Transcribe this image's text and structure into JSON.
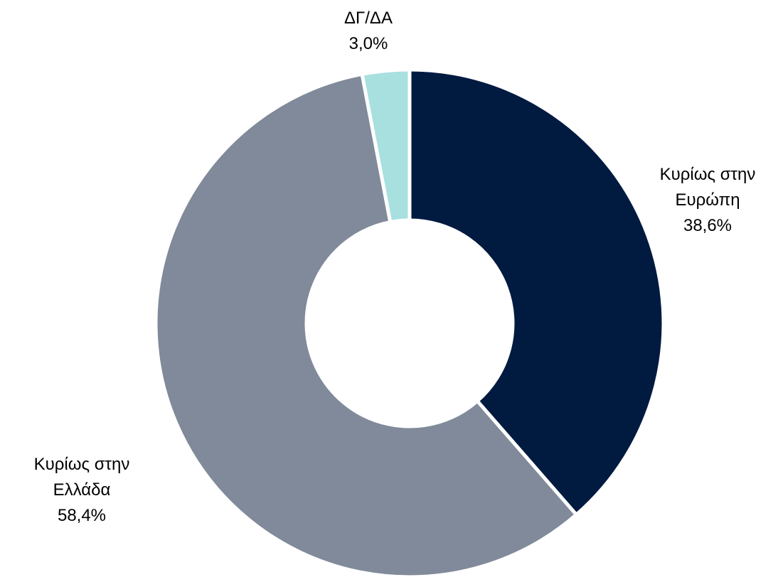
{
  "chart_data": {
    "type": "donut",
    "categories": [
      "Κυρίως στην Ευρώπη",
      "Κυρίως στην Ελλάδα",
      "ΔΓ/ΔΑ"
    ],
    "values": [
      38.6,
      58.4,
      3.0
    ],
    "value_labels": [
      "38,6%",
      "58,4%",
      "3,0%"
    ],
    "colors": [
      "#001a40",
      "#808a9a",
      "#a8e0e0"
    ]
  }
}
